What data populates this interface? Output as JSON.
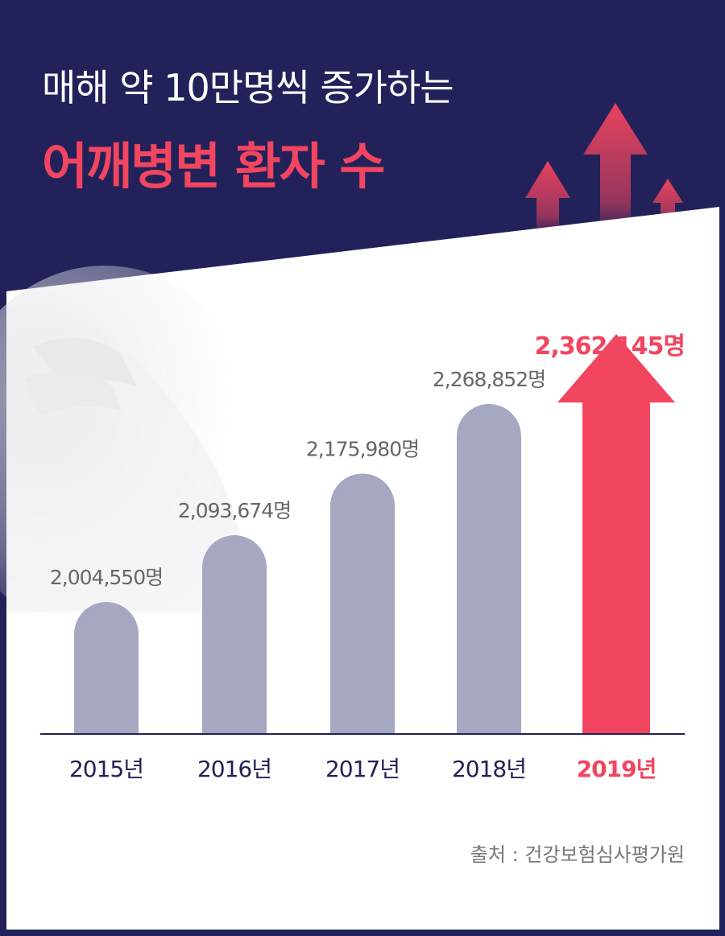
{
  "header": {
    "title_line1": "매해 약 10만명씩 증가하는",
    "title_line2": "어깨병변 환자 수"
  },
  "source": "출처 : 건강보험심사평가원",
  "colors": {
    "background": "#22215a",
    "panel": "#ffffff",
    "bar": "#a6a7c0",
    "highlight": "#f2455f",
    "axis_text": "#22215a",
    "value_text": "#666666"
  },
  "chart_data": {
    "type": "bar",
    "title": "어깨병변 환자 수",
    "categories": [
      "2015년",
      "2016년",
      "2017년",
      "2018년",
      "2019년"
    ],
    "values": [
      2004550,
      2093674,
      2175980,
      2268852,
      2362145
    ],
    "data_labels": [
      "2,004,550명",
      "2,093,674명",
      "2,175,980명",
      "2,268,852명",
      "2,362,145명"
    ],
    "highlight_index": 4,
    "highlight_style": "arrow",
    "xlabel": "",
    "ylabel": "",
    "grid": false,
    "legend": "none"
  }
}
